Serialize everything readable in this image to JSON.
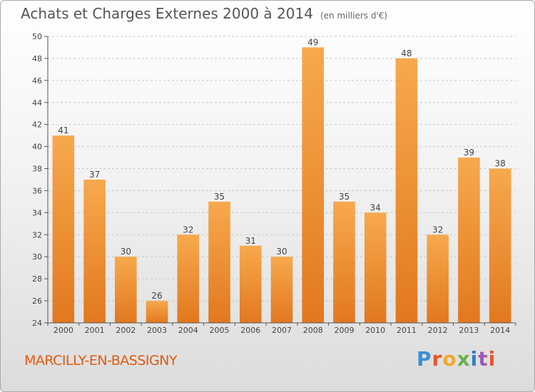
{
  "title": "Achats et Charges Externes 2000 à 2014",
  "unit": "(en milliers d'€)",
  "location": "MARCILLY-EN-BASSIGNY",
  "brand": {
    "text": "Proxiti",
    "letters": [
      "P",
      "r",
      "o",
      "x",
      "i",
      "t",
      "i"
    ],
    "colors": [
      "#3a8fd6",
      "#e8542a",
      "#f2a82b",
      "#6ab04c",
      "#2f7fc9",
      "#9b59b6",
      "#e8542a"
    ]
  },
  "colors": {
    "bar_top": "#f7a94d",
    "bar_bottom": "#e2781f",
    "grid": "#c8c8c8",
    "axis": "#555555"
  },
  "chart_data": {
    "type": "bar",
    "categories": [
      "2000",
      "2001",
      "2002",
      "2003",
      "2004",
      "2005",
      "2006",
      "2007",
      "2008",
      "2009",
      "2010",
      "2011",
      "2012",
      "2013",
      "2014"
    ],
    "values": [
      41,
      37,
      30,
      26,
      32,
      35,
      31,
      30,
      49,
      35,
      34,
      48,
      32,
      39,
      38
    ],
    "ylim": [
      24,
      50
    ],
    "yticks": [
      24,
      26,
      28,
      30,
      32,
      34,
      36,
      38,
      40,
      42,
      44,
      46,
      48,
      50
    ],
    "grid": "horizontal dashed",
    "legend": "none"
  }
}
